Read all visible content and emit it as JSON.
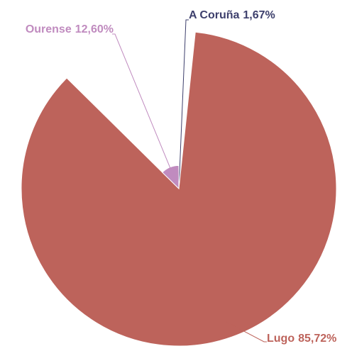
{
  "chart_data": {
    "type": "pie",
    "categories": [
      "A Coruña",
      "Lugo",
      "Ourense"
    ],
    "values": [
      1.67,
      85.72,
      12.6
    ],
    "value_labels": [
      "1,67%",
      "85,72%",
      "12,60%"
    ],
    "colors": [
      "#3d3f6c",
      "#bd635b",
      "#c08bbf"
    ]
  }
}
